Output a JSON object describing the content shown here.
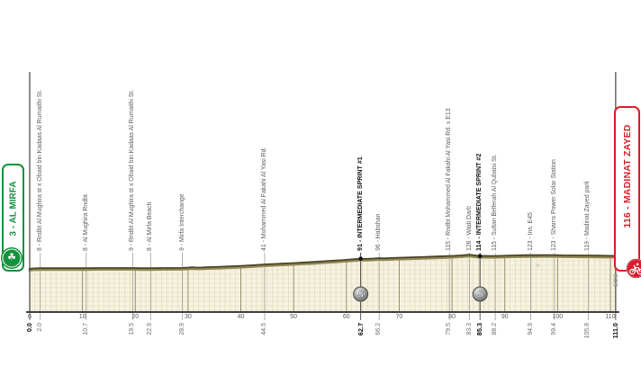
{
  "start_box": {
    "label": "3 - AL MIRFA",
    "color": "#15923e",
    "icon": "shamrock-icon"
  },
  "finish_box": {
    "label": "116 - MADINAT ZAYED",
    "color": "#d81e2a",
    "icon": "cyclist-icon"
  },
  "credit": "SDS",
  "watermark": "n",
  "sprint_badge_letter": "S",
  "chart_data": {
    "type": "area",
    "subject": "stage elevation profile",
    "x_range": [
      0,
      111
    ],
    "x_ticks": [
      "0",
      "10",
      "20",
      "30",
      "40",
      "50",
      "60",
      "70",
      "80",
      "90",
      "100",
      "110"
    ],
    "grid": true,
    "colors": {
      "fill": "#f7f3e2",
      "grid_minor": "#ded7b4",
      "grid_major": "#8d8660",
      "profile_line": "#4b4526",
      "profile_band": "#8f8756",
      "axis": "#3f3f3d",
      "marker_line": "#a09e98",
      "sprint_line": "#3c3c3a",
      "finish_dot": "#d81e2a"
    },
    "km_labels": [
      {
        "text": "0.0",
        "km": 0,
        "bold": true
      },
      {
        "text": "2.0",
        "km": 2,
        "bold": false
      },
      {
        "text": "10.7",
        "km": 10.7,
        "bold": false
      },
      {
        "text": "19.5",
        "km": 19.5,
        "bold": false
      },
      {
        "text": "22.9",
        "km": 22.9,
        "bold": false
      },
      {
        "text": "28.9",
        "km": 28.9,
        "bold": false
      },
      {
        "text": "44.5",
        "km": 44.5,
        "bold": false
      },
      {
        "text": "62.7",
        "km": 62.7,
        "bold": true
      },
      {
        "text": "66.2",
        "km": 66.2,
        "bold": false
      },
      {
        "text": "79.5",
        "km": 79.5,
        "bold": false
      },
      {
        "text": "83.3",
        "km": 83.3,
        "bold": false
      },
      {
        "text": "85.3",
        "km": 85.3,
        "bold": true
      },
      {
        "text": "88.2",
        "km": 88.2,
        "bold": false
      },
      {
        "text": "94.9",
        "km": 94.9,
        "bold": false
      },
      {
        "text": "99.4",
        "km": 99.4,
        "bold": false
      },
      {
        "text": "105.8",
        "km": 105.8,
        "bold": false
      },
      {
        "text": "111.0",
        "km": 111,
        "bold": true
      }
    ],
    "waypoints": [
      {
        "km": 2.0,
        "label": "8 - Rndbt Al Mughira st x Obaid bin Kadaas Al Rumaithi St.",
        "sprint": false
      },
      {
        "km": 10.7,
        "label": "8 - Al Mughira Rndbt",
        "sprint": false
      },
      {
        "km": 19.5,
        "label": "9 - Rndbt Al Mughira st x Obaid bin Kadaas Al Rumaithi St.",
        "sprint": false
      },
      {
        "km": 22.9,
        "label": "8 - Al Mirfa Beach",
        "sprint": false
      },
      {
        "km": 28.9,
        "label": "9 - Mirfa Interchange",
        "sprint": false
      },
      {
        "km": 44.5,
        "label": "41 - Mohammed Al Fakahi Al Yasi Rd.",
        "sprint": false
      },
      {
        "km": 62.7,
        "label": "91 - INTERMEDIATE SPRINT #1",
        "sprint": true
      },
      {
        "km": 66.2,
        "label": "96 - Habshan",
        "sprint": false
      },
      {
        "km": 79.5,
        "label": "115 - Rndbt Mohammed Al Fakahi Al Yasi Rd. x E13",
        "sprint": false
      },
      {
        "km": 83.3,
        "label": "126 - Wadi Darb",
        "sprint": false
      },
      {
        "km": 85.3,
        "label": "114 - INTERMEDIATE SPRINT #2",
        "sprint": true
      },
      {
        "km": 88.2,
        "label": "115 - Sultan Belferah Al Qubaisi St.",
        "sprint": false
      },
      {
        "km": 94.9,
        "label": "123 - Ins. E45",
        "sprint": false
      },
      {
        "km": 99.4,
        "label": "123 - Shams Power Solar Station",
        "sprint": false
      },
      {
        "km": 105.8,
        "label": "119 - Madinat Zayed park",
        "sprint": false
      }
    ],
    "profile_km_elevation": [
      [
        0,
        3
      ],
      [
        1,
        6
      ],
      [
        2,
        8
      ],
      [
        5,
        8
      ],
      [
        8,
        8
      ],
      [
        10.7,
        8
      ],
      [
        13,
        9
      ],
      [
        16,
        9
      ],
      [
        19.5,
        9
      ],
      [
        21,
        8
      ],
      [
        22.9,
        8
      ],
      [
        25,
        9
      ],
      [
        27,
        9
      ],
      [
        28.9,
        10
      ],
      [
        30,
        13
      ],
      [
        30.8,
        16
      ],
      [
        31.6,
        13
      ],
      [
        32.5,
        14
      ],
      [
        34,
        17
      ],
      [
        36,
        20
      ],
      [
        38,
        24
      ],
      [
        40,
        28
      ],
      [
        42,
        33
      ],
      [
        44.5,
        41
      ],
      [
        46,
        44
      ],
      [
        48,
        49
      ],
      [
        50,
        53
      ],
      [
        52,
        58
      ],
      [
        54,
        63
      ],
      [
        56,
        69
      ],
      [
        58,
        75
      ],
      [
        60,
        81
      ],
      [
        61.5,
        87
      ],
      [
        62.7,
        91
      ],
      [
        63.5,
        89
      ],
      [
        64.5,
        91
      ],
      [
        65.3,
        93
      ],
      [
        66.2,
        96
      ],
      [
        67,
        94
      ],
      [
        68,
        96
      ],
      [
        69.5,
        99
      ],
      [
        71,
        101
      ],
      [
        73,
        104
      ],
      [
        75,
        107
      ],
      [
        77,
        110
      ],
      [
        79.5,
        115
      ],
      [
        80.5,
        117
      ],
      [
        82,
        121
      ],
      [
        83.3,
        126
      ],
      [
        84.2,
        121
      ],
      [
        85.3,
        114
      ],
      [
        86.2,
        116
      ],
      [
        87.2,
        115
      ],
      [
        88.2,
        115
      ],
      [
        89.5,
        117
      ],
      [
        91,
        119
      ],
      [
        92.5,
        121
      ],
      [
        94,
        122
      ],
      [
        94.9,
        123
      ],
      [
        96,
        122
      ],
      [
        97.5,
        123
      ],
      [
        99.4,
        123
      ],
      [
        101,
        121
      ],
      [
        103,
        120
      ],
      [
        105.8,
        119
      ],
      [
        107.5,
        118
      ],
      [
        109.5,
        117
      ],
      [
        111,
        116
      ]
    ],
    "start": {
      "km": 0,
      "elevation": 3,
      "name": "AL MIRFA"
    },
    "finish": {
      "km": 111,
      "elevation": 116,
      "name": "MADINAT ZAYED"
    }
  }
}
